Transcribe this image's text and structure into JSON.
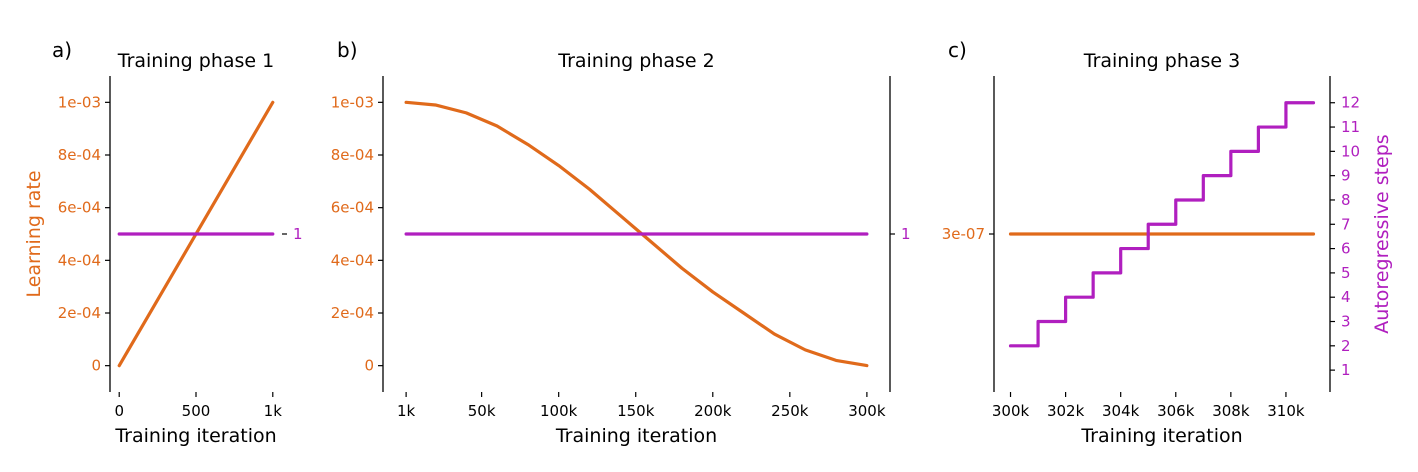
{
  "colors": {
    "lr": "#e06a1b",
    "ar": "#b01fbf",
    "axis": "#000000"
  },
  "chart_data": [
    {
      "type": "line",
      "panel_label": "a)",
      "title": "Training phase 1",
      "xlabel": "Training iteration",
      "ylabel": "Learning rate",
      "y2label": "",
      "xlim": [
        -60,
        1060
      ],
      "ylim": [
        -0.0001,
        0.0011
      ],
      "y2lim": [
        0.95,
        1.05
      ],
      "xticks": [
        0,
        500,
        1000
      ],
      "xtick_labels": [
        "0",
        "500",
        "1k"
      ],
      "yticks": [
        0,
        0.0002,
        0.0004,
        0.0006,
        0.0008,
        0.001
      ],
      "ytick_labels": [
        "0",
        "2e-04",
        "4e-04",
        "6e-04",
        "8e-04",
        "1e-03"
      ],
      "y2ticks": [
        1
      ],
      "y2tick_labels": [
        "1"
      ],
      "series": [
        {
          "name": "Learning rate",
          "axis": "left",
          "x": [
            0,
            1000
          ],
          "y": [
            0,
            0.001
          ]
        },
        {
          "name": "Autoregressive steps",
          "axis": "right",
          "x": [
            0,
            1000
          ],
          "y": [
            1,
            1
          ]
        }
      ]
    },
    {
      "type": "line",
      "panel_label": "b)",
      "title": "Training phase 2",
      "xlabel": "Training iteration",
      "ylabel": "",
      "y2label": "",
      "xlim": [
        -14000,
        315000
      ],
      "ylim": [
        -0.0001,
        0.0011
      ],
      "y2lim": [
        0.95,
        1.05
      ],
      "xticks": [
        1000,
        50000,
        100000,
        150000,
        200000,
        250000,
        300000
      ],
      "xtick_labels": [
        "1k",
        "50k",
        "100k",
        "150k",
        "200k",
        "250k",
        "300k"
      ],
      "yticks": [
        0,
        0.0002,
        0.0004,
        0.0006,
        0.0008,
        0.001
      ],
      "ytick_labels": [
        "0",
        "2e-04",
        "4e-04",
        "6e-04",
        "8e-04",
        "1e-03"
      ],
      "y2ticks": [
        1
      ],
      "y2tick_labels": [
        "1"
      ],
      "series": [
        {
          "name": "Learning rate",
          "axis": "left",
          "x": [
            1000,
            20000,
            40000,
            60000,
            80000,
            100000,
            120000,
            140000,
            160000,
            180000,
            200000,
            220000,
            240000,
            260000,
            280000,
            300000
          ],
          "y": [
            0.001,
            0.00099,
            0.00096,
            0.00091,
            0.00084,
            0.00076,
            0.00067,
            0.00057,
            0.00047,
            0.00037,
            0.00028,
            0.0002,
            0.00012,
            6e-05,
            2e-05,
            3e-07
          ]
        },
        {
          "name": "Autoregressive steps",
          "axis": "right",
          "x": [
            1000,
            300000
          ],
          "y": [
            1,
            1
          ]
        }
      ]
    },
    {
      "type": "line",
      "panel_label": "c)",
      "title": "Training phase 3",
      "xlabel": "Training iteration",
      "ylabel": "",
      "y2label": "Autoregressive steps",
      "xlim": [
        299400,
        311600
      ],
      "ylim": [
        0,
        6e-07
      ],
      "y2lim": [
        0.1,
        13.1
      ],
      "xticks": [
        300000,
        302000,
        304000,
        306000,
        308000,
        310000
      ],
      "xtick_labels": [
        "300k",
        "302k",
        "304k",
        "306k",
        "308k",
        "310k"
      ],
      "yticks": [
        3e-07
      ],
      "ytick_labels": [
        "3e-07"
      ],
      "y2ticks": [
        1,
        2,
        3,
        4,
        5,
        6,
        7,
        8,
        9,
        10,
        11,
        12
      ],
      "y2tick_labels": [
        "1",
        "2",
        "3",
        "4",
        "5",
        "6",
        "7",
        "8",
        "9",
        "10",
        "11",
        "12"
      ],
      "series": [
        {
          "name": "Learning rate",
          "axis": "left",
          "x": [
            300000,
            311000
          ],
          "y": [
            3e-07,
            3e-07
          ]
        },
        {
          "name": "Autoregressive steps",
          "axis": "right",
          "step": "post",
          "x": [
            300000,
            301000,
            302000,
            303000,
            304000,
            305000,
            306000,
            307000,
            308000,
            309000,
            310000,
            311000
          ],
          "y": [
            2,
            3,
            4,
            5,
            6,
            7,
            8,
            9,
            10,
            11,
            12,
            12
          ]
        }
      ]
    }
  ]
}
